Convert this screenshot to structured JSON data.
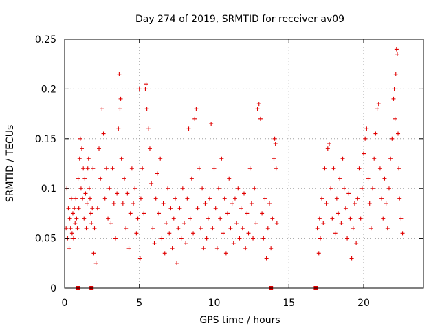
{
  "chart_data": {
    "type": "scatter",
    "title": "Day 274 of 2019, SRMTID for receiver av09",
    "xlabel": "GPS time / hours",
    "ylabel": "SRMTID / TECUs",
    "xlim": [
      0,
      24
    ],
    "ylim": [
      0,
      0.25
    ],
    "xticks": [
      0,
      5,
      10,
      15,
      20
    ],
    "yticks": [
      0,
      0.05,
      0.1,
      0.15,
      0.2,
      0.25
    ],
    "xtick_labels": [
      "0",
      "5",
      "10",
      "15",
      "20"
    ],
    "ytick_labels": [
      "0",
      "0.05",
      "0.1",
      "0.15",
      "0.2",
      "0.25"
    ],
    "grid": true,
    "marker": "plus",
    "color": "#e00000",
    "series": [
      {
        "name": "SRMTID",
        "points": [
          [
            0.1,
            0.06
          ],
          [
            0.15,
            0.1
          ],
          [
            0.2,
            0.05
          ],
          [
            0.25,
            0.08
          ],
          [
            0.3,
            0.04
          ],
          [
            0.35,
            0.07
          ],
          [
            0.4,
            0.06
          ],
          [
            0.45,
            0.09
          ],
          [
            0.5,
            0.055
          ],
          [
            0.55,
            0.075
          ],
          [
            0.6,
            0.05
          ],
          [
            0.65,
            0.08
          ],
          [
            0.7,
            0.065
          ],
          [
            0.75,
            0.09
          ],
          [
            0.8,
            0.07
          ],
          [
            0.85,
            0.06
          ],
          [
            0.9,
            0.11
          ],
          [
            0.95,
            0.08
          ],
          [
            1.0,
            0.13
          ],
          [
            1.05,
            0.15
          ],
          [
            1.1,
            0.1
          ],
          [
            1.15,
            0.14
          ],
          [
            1.2,
            0.09
          ],
          [
            1.25,
            0.12
          ],
          [
            1.3,
            0.07
          ],
          [
            1.35,
            0.11
          ],
          [
            1.4,
            0.095
          ],
          [
            1.45,
            0.06
          ],
          [
            1.5,
            0.085
          ],
          [
            1.55,
            0.12
          ],
          [
            1.6,
            0.13
          ],
          [
            1.65,
            0.1
          ],
          [
            1.7,
            0.09
          ],
          [
            1.75,
            0.075
          ],
          [
            1.8,
            0.065
          ],
          [
            1.85,
            0.08
          ],
          [
            1.9,
            0.12
          ],
          [
            1.95,
            0.035
          ],
          [
            2.0,
            0.06
          ],
          [
            2.1,
            0.025
          ],
          [
            2.2,
            0.08
          ],
          [
            2.3,
            0.14
          ],
          [
            2.4,
            0.11
          ],
          [
            2.5,
            0.18
          ],
          [
            2.6,
            0.155
          ],
          [
            2.7,
            0.09
          ],
          [
            2.8,
            0.12
          ],
          [
            2.9,
            0.07
          ],
          [
            3.0,
            0.1
          ],
          [
            3.1,
            0.065
          ],
          [
            3.2,
            0.12
          ],
          [
            3.3,
            0.085
          ],
          [
            3.4,
            0.05
          ],
          [
            3.5,
            0.095
          ],
          [
            3.6,
            0.16
          ],
          [
            3.65,
            0.215
          ],
          [
            3.7,
            0.18
          ],
          [
            3.75,
            0.19
          ],
          [
            3.8,
            0.13
          ],
          [
            3.9,
            0.085
          ],
          [
            4.0,
            0.11
          ],
          [
            4.1,
            0.06
          ],
          [
            4.2,
            0.095
          ],
          [
            4.3,
            0.04
          ],
          [
            4.4,
            0.075
          ],
          [
            4.5,
            0.12
          ],
          [
            4.6,
            0.085
          ],
          [
            4.7,
            0.1
          ],
          [
            4.8,
            0.055
          ],
          [
            4.9,
            0.07
          ],
          [
            5.0,
            0.2
          ],
          [
            5.05,
            0.03
          ],
          [
            5.1,
            0.09
          ],
          [
            5.2,
            0.12
          ],
          [
            5.3,
            0.075
          ],
          [
            5.4,
            0.2
          ],
          [
            5.45,
            0.205
          ],
          [
            5.5,
            0.18
          ],
          [
            5.6,
            0.16
          ],
          [
            5.7,
            0.14
          ],
          [
            5.8,
            0.105
          ],
          [
            5.9,
            0.06
          ],
          [
            6.0,
            0.045
          ],
          [
            6.1,
            0.09
          ],
          [
            6.2,
            0.115
          ],
          [
            6.3,
            0.075
          ],
          [
            6.4,
            0.13
          ],
          [
            6.5,
            0.05
          ],
          [
            6.6,
            0.085
          ],
          [
            6.7,
            0.035
          ],
          [
            6.8,
            0.065
          ],
          [
            6.9,
            0.1
          ],
          [
            7.0,
            0.055
          ],
          [
            7.1,
            0.08
          ],
          [
            7.2,
            0.04
          ],
          [
            7.3,
            0.07
          ],
          [
            7.4,
            0.09
          ],
          [
            7.5,
            0.025
          ],
          [
            7.6,
            0.06
          ],
          [
            7.7,
            0.08
          ],
          [
            7.8,
            0.05
          ],
          [
            7.9,
            0.1
          ],
          [
            8.0,
            0.065
          ],
          [
            8.1,
            0.045
          ],
          [
            8.2,
            0.09
          ],
          [
            8.3,
            0.16
          ],
          [
            8.4,
            0.07
          ],
          [
            8.5,
            0.11
          ],
          [
            8.6,
            0.055
          ],
          [
            8.7,
            0.17
          ],
          [
            8.8,
            0.18
          ],
          [
            8.9,
            0.08
          ],
          [
            9.0,
            0.12
          ],
          [
            9.1,
            0.06
          ],
          [
            9.2,
            0.1
          ],
          [
            9.3,
            0.04
          ],
          [
            9.4,
            0.085
          ],
          [
            9.5,
            0.05
          ],
          [
            9.6,
            0.07
          ],
          [
            9.7,
            0.09
          ],
          [
            9.8,
            0.165
          ],
          [
            9.9,
            0.06
          ],
          [
            10.0,
            0.12
          ],
          [
            10.1,
            0.08
          ],
          [
            10.2,
            0.04
          ],
          [
            10.3,
            0.1
          ],
          [
            10.4,
            0.07
          ],
          [
            10.5,
            0.13
          ],
          [
            10.6,
            0.055
          ],
          [
            10.7,
            0.09
          ],
          [
            10.8,
            0.035
          ],
          [
            10.9,
            0.075
          ],
          [
            11.0,
            0.11
          ],
          [
            11.1,
            0.06
          ],
          [
            11.2,
            0.085
          ],
          [
            11.3,
            0.045
          ],
          [
            11.4,
            0.09
          ],
          [
            11.5,
            0.065
          ],
          [
            11.6,
            0.1
          ],
          [
            11.7,
            0.05
          ],
          [
            11.8,
            0.08
          ],
          [
            11.9,
            0.06
          ],
          [
            12.0,
            0.095
          ],
          [
            12.1,
            0.04
          ],
          [
            12.2,
            0.075
          ],
          [
            12.3,
            0.055
          ],
          [
            12.4,
            0.12
          ],
          [
            12.5,
            0.085
          ],
          [
            12.6,
            0.05
          ],
          [
            12.7,
            0.1
          ],
          [
            12.8,
            0.065
          ],
          [
            12.9,
            0.18
          ],
          [
            13.0,
            0.185
          ],
          [
            13.1,
            0.17
          ],
          [
            13.2,
            0.075
          ],
          [
            13.3,
            0.05
          ],
          [
            13.4,
            0.09
          ],
          [
            13.5,
            0.03
          ],
          [
            13.6,
            0.06
          ],
          [
            13.7,
            0.085
          ],
          [
            13.8,
            0.04
          ],
          [
            13.9,
            0.07
          ],
          [
            14.0,
            0.13
          ],
          [
            14.05,
            0.15
          ],
          [
            14.1,
            0.145
          ],
          [
            14.15,
            0.12
          ],
          [
            14.2,
            0.065
          ],
          [
            16.9,
            0.06
          ],
          [
            17.0,
            0.035
          ],
          [
            17.05,
            0.07
          ],
          [
            17.1,
            0.05
          ],
          [
            17.2,
            0.09
          ],
          [
            17.3,
            0.065
          ],
          [
            17.4,
            0.12
          ],
          [
            17.5,
            0.085
          ],
          [
            17.6,
            0.14
          ],
          [
            17.7,
            0.145
          ],
          [
            17.8,
            0.1
          ],
          [
            17.9,
            0.07
          ],
          [
            18.0,
            0.12
          ],
          [
            18.1,
            0.055
          ],
          [
            18.2,
            0.09
          ],
          [
            18.3,
            0.075
          ],
          [
            18.4,
            0.11
          ],
          [
            18.5,
            0.065
          ],
          [
            18.6,
            0.13
          ],
          [
            18.7,
            0.1
          ],
          [
            18.8,
            0.08
          ],
          [
            18.9,
            0.05
          ],
          [
            19.0,
            0.095
          ],
          [
            19.1,
            0.07
          ],
          [
            19.2,
            0.03
          ],
          [
            19.3,
            0.06
          ],
          [
            19.4,
            0.085
          ],
          [
            19.5,
            0.045
          ],
          [
            19.6,
            0.09
          ],
          [
            19.7,
            0.12
          ],
          [
            19.8,
            0.07
          ],
          [
            19.9,
            0.1
          ],
          [
            20.0,
            0.135
          ],
          [
            20.1,
            0.15
          ],
          [
            20.2,
            0.16
          ],
          [
            20.3,
            0.11
          ],
          [
            20.4,
            0.085
          ],
          [
            20.5,
            0.06
          ],
          [
            20.6,
            0.1
          ],
          [
            20.7,
            0.13
          ],
          [
            20.8,
            0.155
          ],
          [
            20.9,
            0.18
          ],
          [
            21.0,
            0.185
          ],
          [
            21.1,
            0.12
          ],
          [
            21.2,
            0.09
          ],
          [
            21.3,
            0.07
          ],
          [
            21.4,
            0.11
          ],
          [
            21.5,
            0.085
          ],
          [
            21.6,
            0.06
          ],
          [
            21.7,
            0.1
          ],
          [
            21.8,
            0.13
          ],
          [
            21.9,
            0.15
          ],
          [
            22.0,
            0.19
          ],
          [
            22.05,
            0.2
          ],
          [
            22.1,
            0.17
          ],
          [
            22.15,
            0.215
          ],
          [
            22.2,
            0.24
          ],
          [
            22.25,
            0.235
          ],
          [
            22.3,
            0.155
          ],
          [
            22.35,
            0.12
          ],
          [
            22.4,
            0.09
          ],
          [
            22.5,
            0.07
          ],
          [
            22.6,
            0.055
          ]
        ]
      }
    ],
    "gap_markers_x": [
      0.9,
      1.8,
      13.8,
      16.8
    ]
  }
}
